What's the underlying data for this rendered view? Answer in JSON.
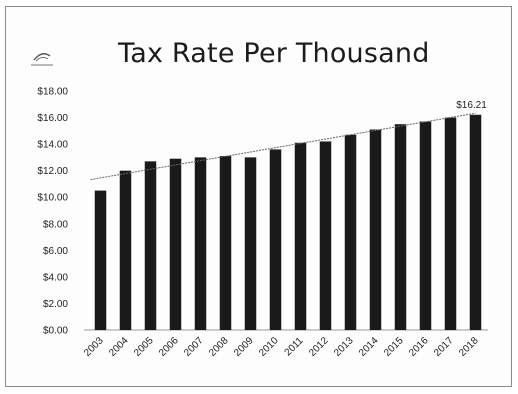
{
  "chart_data": {
    "type": "bar",
    "title": "Tax Rate Per Thousand",
    "xlabel": "",
    "ylabel": "",
    "categories": [
      "2003",
      "2004",
      "2005",
      "2006",
      "2007",
      "2008",
      "2009",
      "2010",
      "2011",
      "2012",
      "2013",
      "2014",
      "2015",
      "2016",
      "2017",
      "2018"
    ],
    "values": [
      10.5,
      12.0,
      12.7,
      12.9,
      13.0,
      13.1,
      13.0,
      13.6,
      14.1,
      14.2,
      14.7,
      15.1,
      15.5,
      15.7,
      16.0,
      16.21
    ],
    "ylim": [
      0,
      18
    ],
    "yticks": [
      "$0.00",
      "$2.00",
      "$4.00",
      "$6.00",
      "$8.00",
      "$10.00",
      "$12.00",
      "$14.00",
      "$16.00",
      "$18.00"
    ],
    "annotation": "$16.21",
    "trendline": true,
    "grid": false,
    "bar_color": "#1a1a1a"
  }
}
